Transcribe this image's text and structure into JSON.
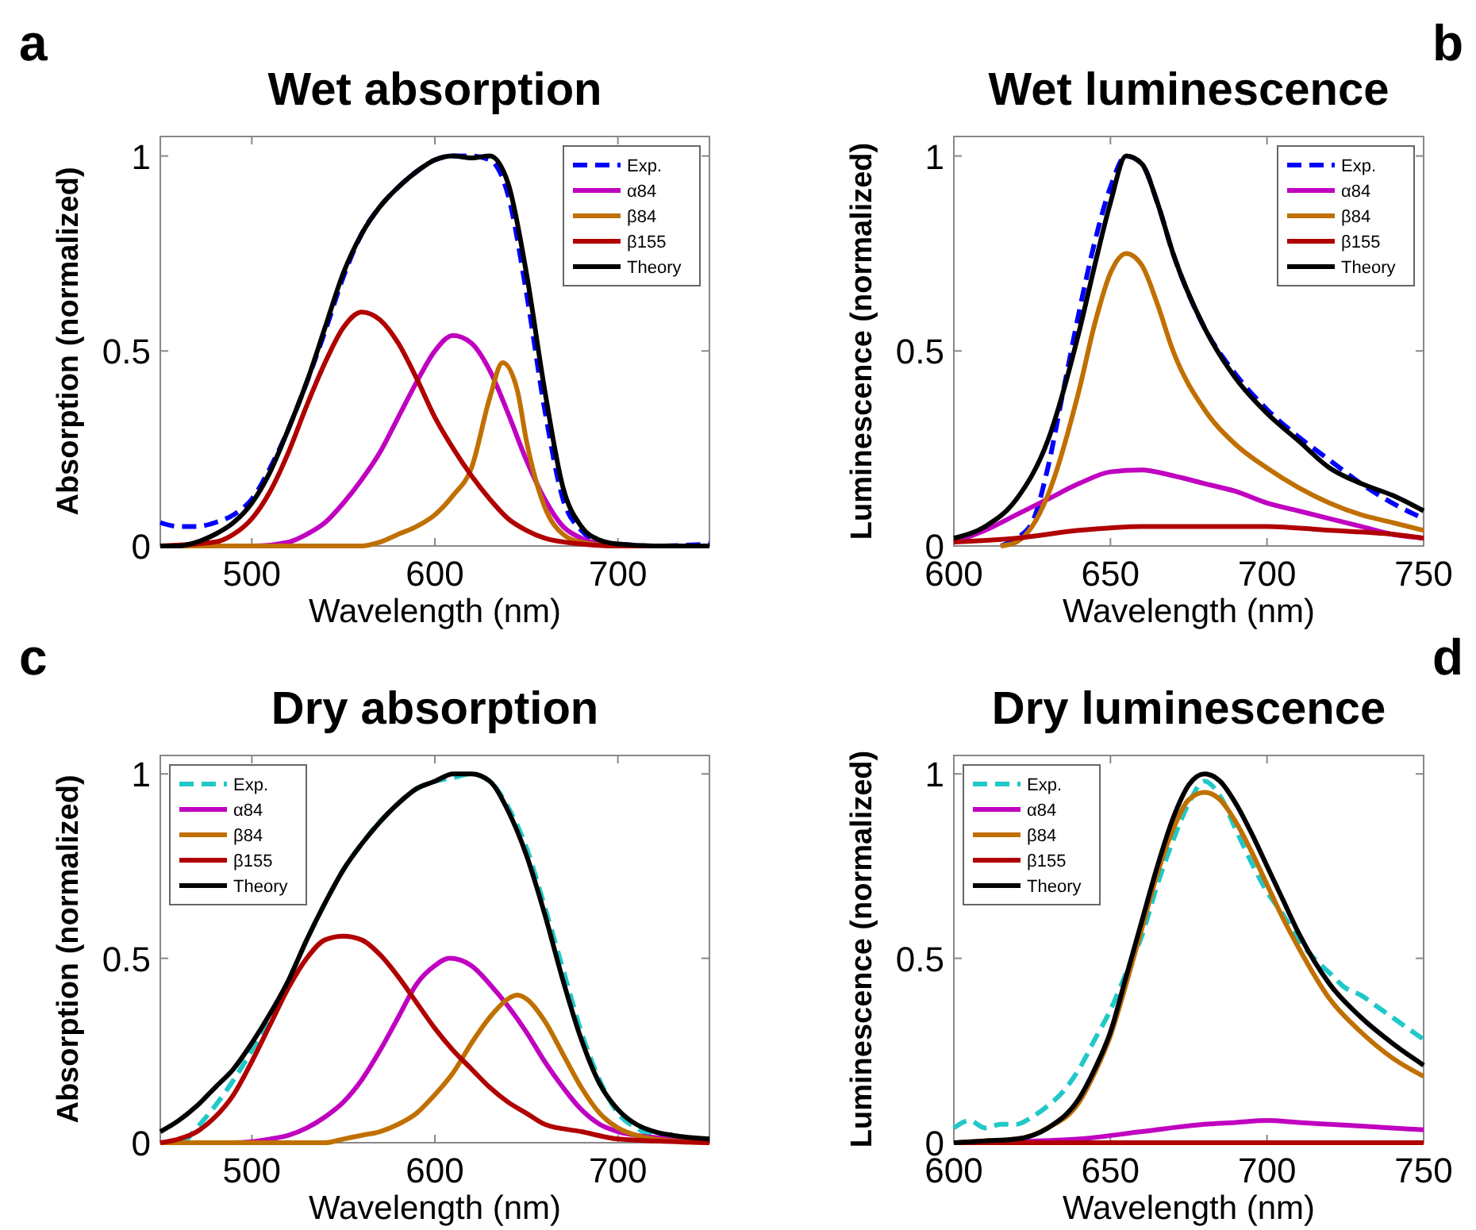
{
  "chart_data": [
    {
      "type": "line",
      "title": "Wet absorption",
      "xlabel": "Wavelength (nm)",
      "ylabel": "Absorption (normalized)",
      "annotations": [
        "a"
      ],
      "xlim": [
        450,
        750
      ],
      "xticks": [
        500,
        600,
        700
      ],
      "ylim": [
        0,
        1.05
      ],
      "yticks": [
        0,
        0.5,
        1
      ],
      "legend": "top right",
      "grid": false,
      "series": [
        {
          "name": "Exp.",
          "color": "#0000ff",
          "line_style": "dashed",
          "x": [
            450,
            460,
            470,
            480,
            490,
            500,
            510,
            520,
            530,
            540,
            550,
            560,
            570,
            580,
            590,
            600,
            610,
            620,
            630,
            640,
            650,
            660,
            670,
            680,
            690,
            700,
            720,
            750
          ],
          "values": [
            0.06,
            0.05,
            0.05,
            0.06,
            0.08,
            0.12,
            0.2,
            0.3,
            0.42,
            0.55,
            0.69,
            0.8,
            0.87,
            0.92,
            0.96,
            0.99,
            1.0,
            1.0,
            0.99,
            0.9,
            0.65,
            0.35,
            0.12,
            0.04,
            0.01,
            0.005,
            0,
            0.005
          ]
        },
        {
          "name": "α84",
          "color": "#c000c0",
          "x": [
            450,
            500,
            520,
            530,
            540,
            550,
            560,
            570,
            580,
            590,
            600,
            610,
            620,
            630,
            640,
            650,
            660,
            670,
            680,
            690,
            700,
            750
          ],
          "values": [
            0,
            0,
            0.01,
            0.03,
            0.06,
            0.11,
            0.17,
            0.24,
            0.33,
            0.42,
            0.5,
            0.54,
            0.52,
            0.45,
            0.34,
            0.22,
            0.12,
            0.05,
            0.02,
            0.005,
            0,
            0
          ]
        },
        {
          "name": "β84",
          "color": "#c07000",
          "x": [
            450,
            560,
            570,
            580,
            590,
            600,
            610,
            620,
            630,
            637,
            645,
            650,
            660,
            670,
            680,
            700,
            750
          ],
          "values": [
            0,
            0,
            0.01,
            0.03,
            0.05,
            0.08,
            0.13,
            0.2,
            0.38,
            0.47,
            0.4,
            0.27,
            0.1,
            0.03,
            0.01,
            0,
            0
          ]
        },
        {
          "name": "β155",
          "color": "#b00000",
          "x": [
            450,
            480,
            490,
            500,
            510,
            520,
            530,
            540,
            550,
            560,
            570,
            580,
            590,
            600,
            610,
            620,
            630,
            640,
            650,
            660,
            680,
            700,
            750
          ],
          "values": [
            0,
            0.01,
            0.03,
            0.07,
            0.14,
            0.24,
            0.36,
            0.47,
            0.56,
            0.6,
            0.58,
            0.52,
            0.43,
            0.33,
            0.25,
            0.18,
            0.12,
            0.07,
            0.04,
            0.02,
            0.005,
            0,
            0
          ]
        },
        {
          "name": "Theory",
          "color": "#000000",
          "x": [
            450,
            460,
            470,
            480,
            490,
            500,
            510,
            520,
            530,
            540,
            550,
            560,
            570,
            580,
            590,
            600,
            610,
            620,
            630,
            640,
            650,
            660,
            670,
            680,
            690,
            700,
            720,
            750
          ],
          "values": [
            0,
            0,
            0.01,
            0.03,
            0.06,
            0.11,
            0.19,
            0.3,
            0.42,
            0.56,
            0.7,
            0.8,
            0.87,
            0.92,
            0.96,
            0.99,
            1.0,
            0.995,
            1.0,
            0.93,
            0.7,
            0.4,
            0.15,
            0.05,
            0.015,
            0.005,
            0,
            0
          ]
        }
      ]
    },
    {
      "type": "line",
      "title": "Wet luminescence",
      "xlabel": "Wavelength (nm)",
      "ylabel": "Luminescence (normalized)",
      "annotations": [
        "b"
      ],
      "xlim": [
        600,
        750
      ],
      "xticks": [
        600,
        650,
        700,
        750
      ],
      "ylim": [
        0,
        1.05
      ],
      "yticks": [
        0,
        0.5,
        1
      ],
      "legend": "top right",
      "grid": false,
      "series": [
        {
          "name": "Exp.",
          "color": "#0000ff",
          "line_style": "dashed",
          "x": [
            615,
            620,
            625,
            630,
            635,
            640,
            645,
            650,
            655,
            660,
            665,
            670,
            680,
            690,
            700,
            710,
            720,
            730,
            740,
            750
          ],
          "values": [
            0,
            0.02,
            0.06,
            0.2,
            0.4,
            0.6,
            0.78,
            0.92,
            1.0,
            0.98,
            0.88,
            0.75,
            0.56,
            0.44,
            0.35,
            0.28,
            0.22,
            0.16,
            0.11,
            0.07
          ]
        },
        {
          "name": "α84",
          "color": "#c000c0",
          "x": [
            600,
            610,
            620,
            630,
            640,
            650,
            660,
            670,
            680,
            690,
            700,
            710,
            720,
            730,
            740,
            750
          ],
          "values": [
            0.01,
            0.04,
            0.08,
            0.12,
            0.16,
            0.19,
            0.195,
            0.18,
            0.16,
            0.14,
            0.11,
            0.09,
            0.07,
            0.05,
            0.03,
            0.02
          ]
        },
        {
          "name": "β84",
          "color": "#c07000",
          "x": [
            615,
            620,
            625,
            630,
            640,
            645,
            650,
            655,
            660,
            665,
            670,
            680,
            690,
            700,
            710,
            720,
            730,
            740,
            750
          ],
          "values": [
            0,
            0.01,
            0.05,
            0.13,
            0.4,
            0.57,
            0.7,
            0.75,
            0.72,
            0.62,
            0.5,
            0.35,
            0.26,
            0.2,
            0.15,
            0.11,
            0.08,
            0.06,
            0.04
          ]
        },
        {
          "name": "β155",
          "color": "#b00000",
          "x": [
            600,
            620,
            640,
            660,
            680,
            700,
            720,
            740,
            750
          ],
          "values": [
            0.01,
            0.02,
            0.04,
            0.05,
            0.05,
            0.05,
            0.04,
            0.03,
            0.02
          ]
        },
        {
          "name": "Theory",
          "color": "#000000",
          "x": [
            600,
            610,
            620,
            630,
            640,
            645,
            650,
            655,
            660,
            665,
            670,
            680,
            690,
            700,
            710,
            720,
            730,
            740,
            750
          ],
          "values": [
            0.02,
            0.05,
            0.12,
            0.27,
            0.55,
            0.72,
            0.88,
            1.0,
            0.98,
            0.88,
            0.75,
            0.56,
            0.43,
            0.34,
            0.27,
            0.2,
            0.16,
            0.13,
            0.09
          ]
        }
      ]
    },
    {
      "type": "line",
      "title": "Dry absorption",
      "xlabel": "Wavelength (nm)",
      "ylabel": "Absorption (normalized)",
      "annotations": [
        "c"
      ],
      "xlim": [
        450,
        750
      ],
      "xticks": [
        500,
        600,
        700
      ],
      "ylim": [
        0,
        1.05
      ],
      "yticks": [
        0,
        0.5,
        1
      ],
      "legend": "top left",
      "grid": false,
      "series": [
        {
          "name": "Exp.",
          "color": "#20c8c8",
          "line_style": "dashed",
          "x": [
            463,
            470,
            480,
            490,
            500,
            510,
            520,
            530,
            540,
            550,
            560,
            570,
            580,
            590,
            600,
            610,
            620,
            630,
            640,
            650,
            660,
            670,
            680,
            690,
            700,
            710,
            720,
            730,
            750
          ],
          "values": [
            0,
            0.04,
            0.1,
            0.17,
            0.25,
            0.34,
            0.44,
            0.55,
            0.65,
            0.74,
            0.81,
            0.87,
            0.92,
            0.96,
            0.98,
            0.99,
            1.0,
            0.98,
            0.91,
            0.8,
            0.64,
            0.47,
            0.3,
            0.17,
            0.08,
            0.04,
            0.02,
            0.01,
            0
          ]
        },
        {
          "name": "α84",
          "color": "#c000c0",
          "x": [
            450,
            490,
            510,
            520,
            530,
            540,
            550,
            560,
            570,
            580,
            590,
            600,
            608,
            620,
            630,
            640,
            650,
            660,
            670,
            680,
            690,
            700,
            710,
            730,
            750
          ],
          "values": [
            0,
            0,
            0.01,
            0.02,
            0.04,
            0.07,
            0.11,
            0.17,
            0.25,
            0.34,
            0.43,
            0.48,
            0.5,
            0.48,
            0.43,
            0.37,
            0.3,
            0.22,
            0.15,
            0.09,
            0.05,
            0.03,
            0.02,
            0.01,
            0
          ]
        },
        {
          "name": "β84",
          "color": "#c07000",
          "x": [
            450,
            540,
            550,
            560,
            570,
            580,
            590,
            600,
            610,
            620,
            630,
            640,
            645,
            650,
            660,
            670,
            680,
            690,
            700,
            710,
            720,
            750
          ],
          "values": [
            0,
            0,
            0.01,
            0.02,
            0.03,
            0.05,
            0.08,
            0.13,
            0.19,
            0.27,
            0.34,
            0.39,
            0.4,
            0.39,
            0.33,
            0.24,
            0.15,
            0.08,
            0.04,
            0.02,
            0.01,
            0
          ]
        },
        {
          "name": "β155",
          "color": "#b00000",
          "x": [
            450,
            460,
            470,
            480,
            490,
            500,
            510,
            520,
            530,
            540,
            550,
            560,
            570,
            580,
            590,
            600,
            610,
            620,
            630,
            640,
            650,
            660,
            680,
            700,
            720,
            750
          ],
          "values": [
            0,
            0.01,
            0.03,
            0.07,
            0.13,
            0.22,
            0.32,
            0.42,
            0.5,
            0.55,
            0.56,
            0.55,
            0.51,
            0.45,
            0.38,
            0.31,
            0.25,
            0.2,
            0.15,
            0.11,
            0.08,
            0.05,
            0.03,
            0.01,
            0.005,
            0
          ]
        },
        {
          "name": "Theory",
          "color": "#000000",
          "x": [
            450,
            460,
            470,
            480,
            490,
            500,
            510,
            520,
            530,
            540,
            550,
            560,
            570,
            580,
            590,
            600,
            610,
            620,
            630,
            640,
            650,
            660,
            670,
            680,
            690,
            700,
            710,
            720,
            730,
            750
          ],
          "values": [
            0.03,
            0.06,
            0.1,
            0.15,
            0.2,
            0.27,
            0.35,
            0.44,
            0.55,
            0.65,
            0.74,
            0.81,
            0.87,
            0.92,
            0.96,
            0.98,
            1.0,
            1.0,
            0.98,
            0.9,
            0.78,
            0.62,
            0.44,
            0.28,
            0.16,
            0.09,
            0.05,
            0.03,
            0.02,
            0.01
          ]
        }
      ]
    },
    {
      "type": "line",
      "title": "Dry luminescence",
      "xlabel": "Wavelength (nm)",
      "ylabel": "Luminescence (normalized)",
      "annotations": [
        "d"
      ],
      "xlim": [
        600,
        750
      ],
      "xticks": [
        600,
        650,
        700,
        750
      ],
      "ylim": [
        0,
        1.05
      ],
      "yticks": [
        0,
        0.5,
        1
      ],
      "legend": "top left",
      "grid": false,
      "series": [
        {
          "name": "Exp.",
          "color": "#20c8c8",
          "line_style": "dashed",
          "x": [
            600,
            605,
            610,
            615,
            620,
            625,
            630,
            635,
            640,
            645,
            650,
            655,
            660,
            665,
            670,
            675,
            680,
            685,
            690,
            695,
            700,
            705,
            710,
            715,
            720,
            725,
            730,
            735,
            740,
            745,
            750
          ],
          "values": [
            0.04,
            0.06,
            0.04,
            0.05,
            0.05,
            0.07,
            0.1,
            0.14,
            0.2,
            0.28,
            0.36,
            0.46,
            0.56,
            0.7,
            0.82,
            0.92,
            0.98,
            0.94,
            0.85,
            0.76,
            0.68,
            0.62,
            0.55,
            0.5,
            0.46,
            0.42,
            0.4,
            0.37,
            0.34,
            0.31,
            0.28
          ]
        },
        {
          "name": "α84",
          "color": "#c000c0",
          "x": [
            600,
            620,
            640,
            660,
            680,
            690,
            700,
            710,
            720,
            740,
            750
          ],
          "values": [
            0,
            0.003,
            0.01,
            0.03,
            0.05,
            0.055,
            0.06,
            0.055,
            0.05,
            0.04,
            0.035
          ]
        },
        {
          "name": "β84",
          "color": "#c07000",
          "x": [
            600,
            610,
            620,
            630,
            640,
            645,
            650,
            655,
            660,
            665,
            670,
            675,
            680,
            685,
            690,
            695,
            700,
            705,
            710,
            720,
            730,
            740,
            750
          ],
          "values": [
            0,
            0.005,
            0.01,
            0.04,
            0.11,
            0.19,
            0.29,
            0.43,
            0.58,
            0.73,
            0.85,
            0.93,
            0.95,
            0.93,
            0.87,
            0.79,
            0.7,
            0.61,
            0.53,
            0.39,
            0.3,
            0.23,
            0.18
          ]
        },
        {
          "name": "β155",
          "color": "#b00000",
          "x": [
            600,
            750
          ],
          "values": [
            0,
            0
          ]
        },
        {
          "name": "Theory",
          "color": "#000000",
          "x": [
            600,
            610,
            620,
            630,
            640,
            645,
            650,
            655,
            660,
            665,
            670,
            675,
            680,
            685,
            690,
            695,
            700,
            705,
            710,
            720,
            730,
            740,
            750
          ],
          "values": [
            0,
            0.005,
            0.01,
            0.04,
            0.12,
            0.2,
            0.3,
            0.45,
            0.6,
            0.75,
            0.88,
            0.97,
            1.0,
            0.98,
            0.92,
            0.84,
            0.75,
            0.66,
            0.57,
            0.43,
            0.34,
            0.27,
            0.21
          ]
        }
      ]
    }
  ]
}
